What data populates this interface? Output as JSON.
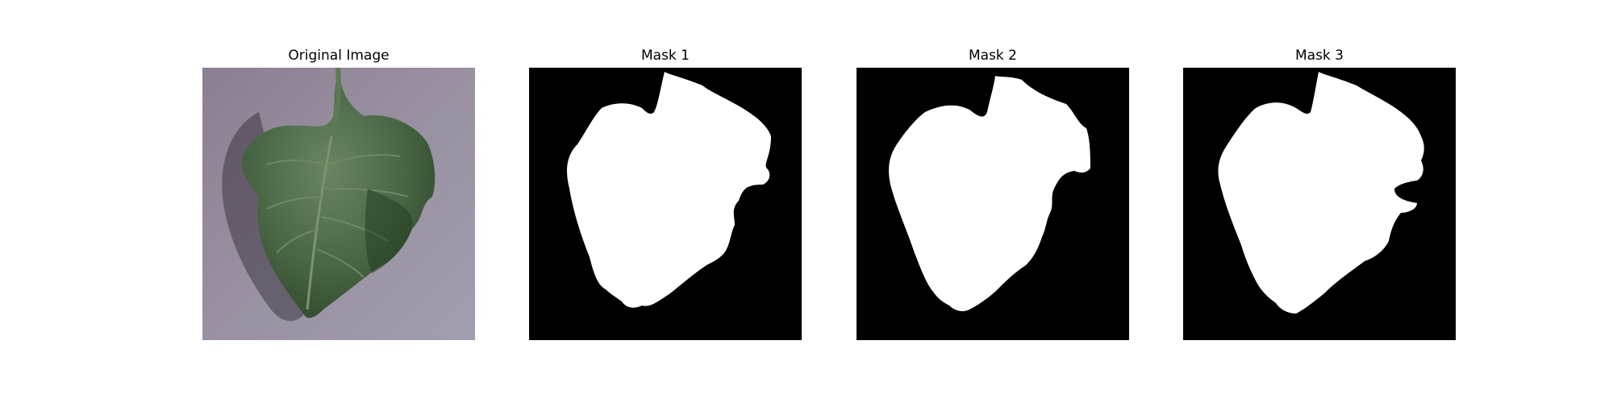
{
  "panels": [
    {
      "title": "Original Image"
    },
    {
      "title": "Mask 1"
    },
    {
      "title": "Mask 2"
    },
    {
      "title": "Mask 3"
    }
  ],
  "colors": {
    "background_surface": "#8f8797",
    "leaf_dark": "#2e4a2c",
    "leaf_mid": "#4f6c48",
    "mask_bg": "#000000",
    "mask_fg": "#ffffff"
  }
}
